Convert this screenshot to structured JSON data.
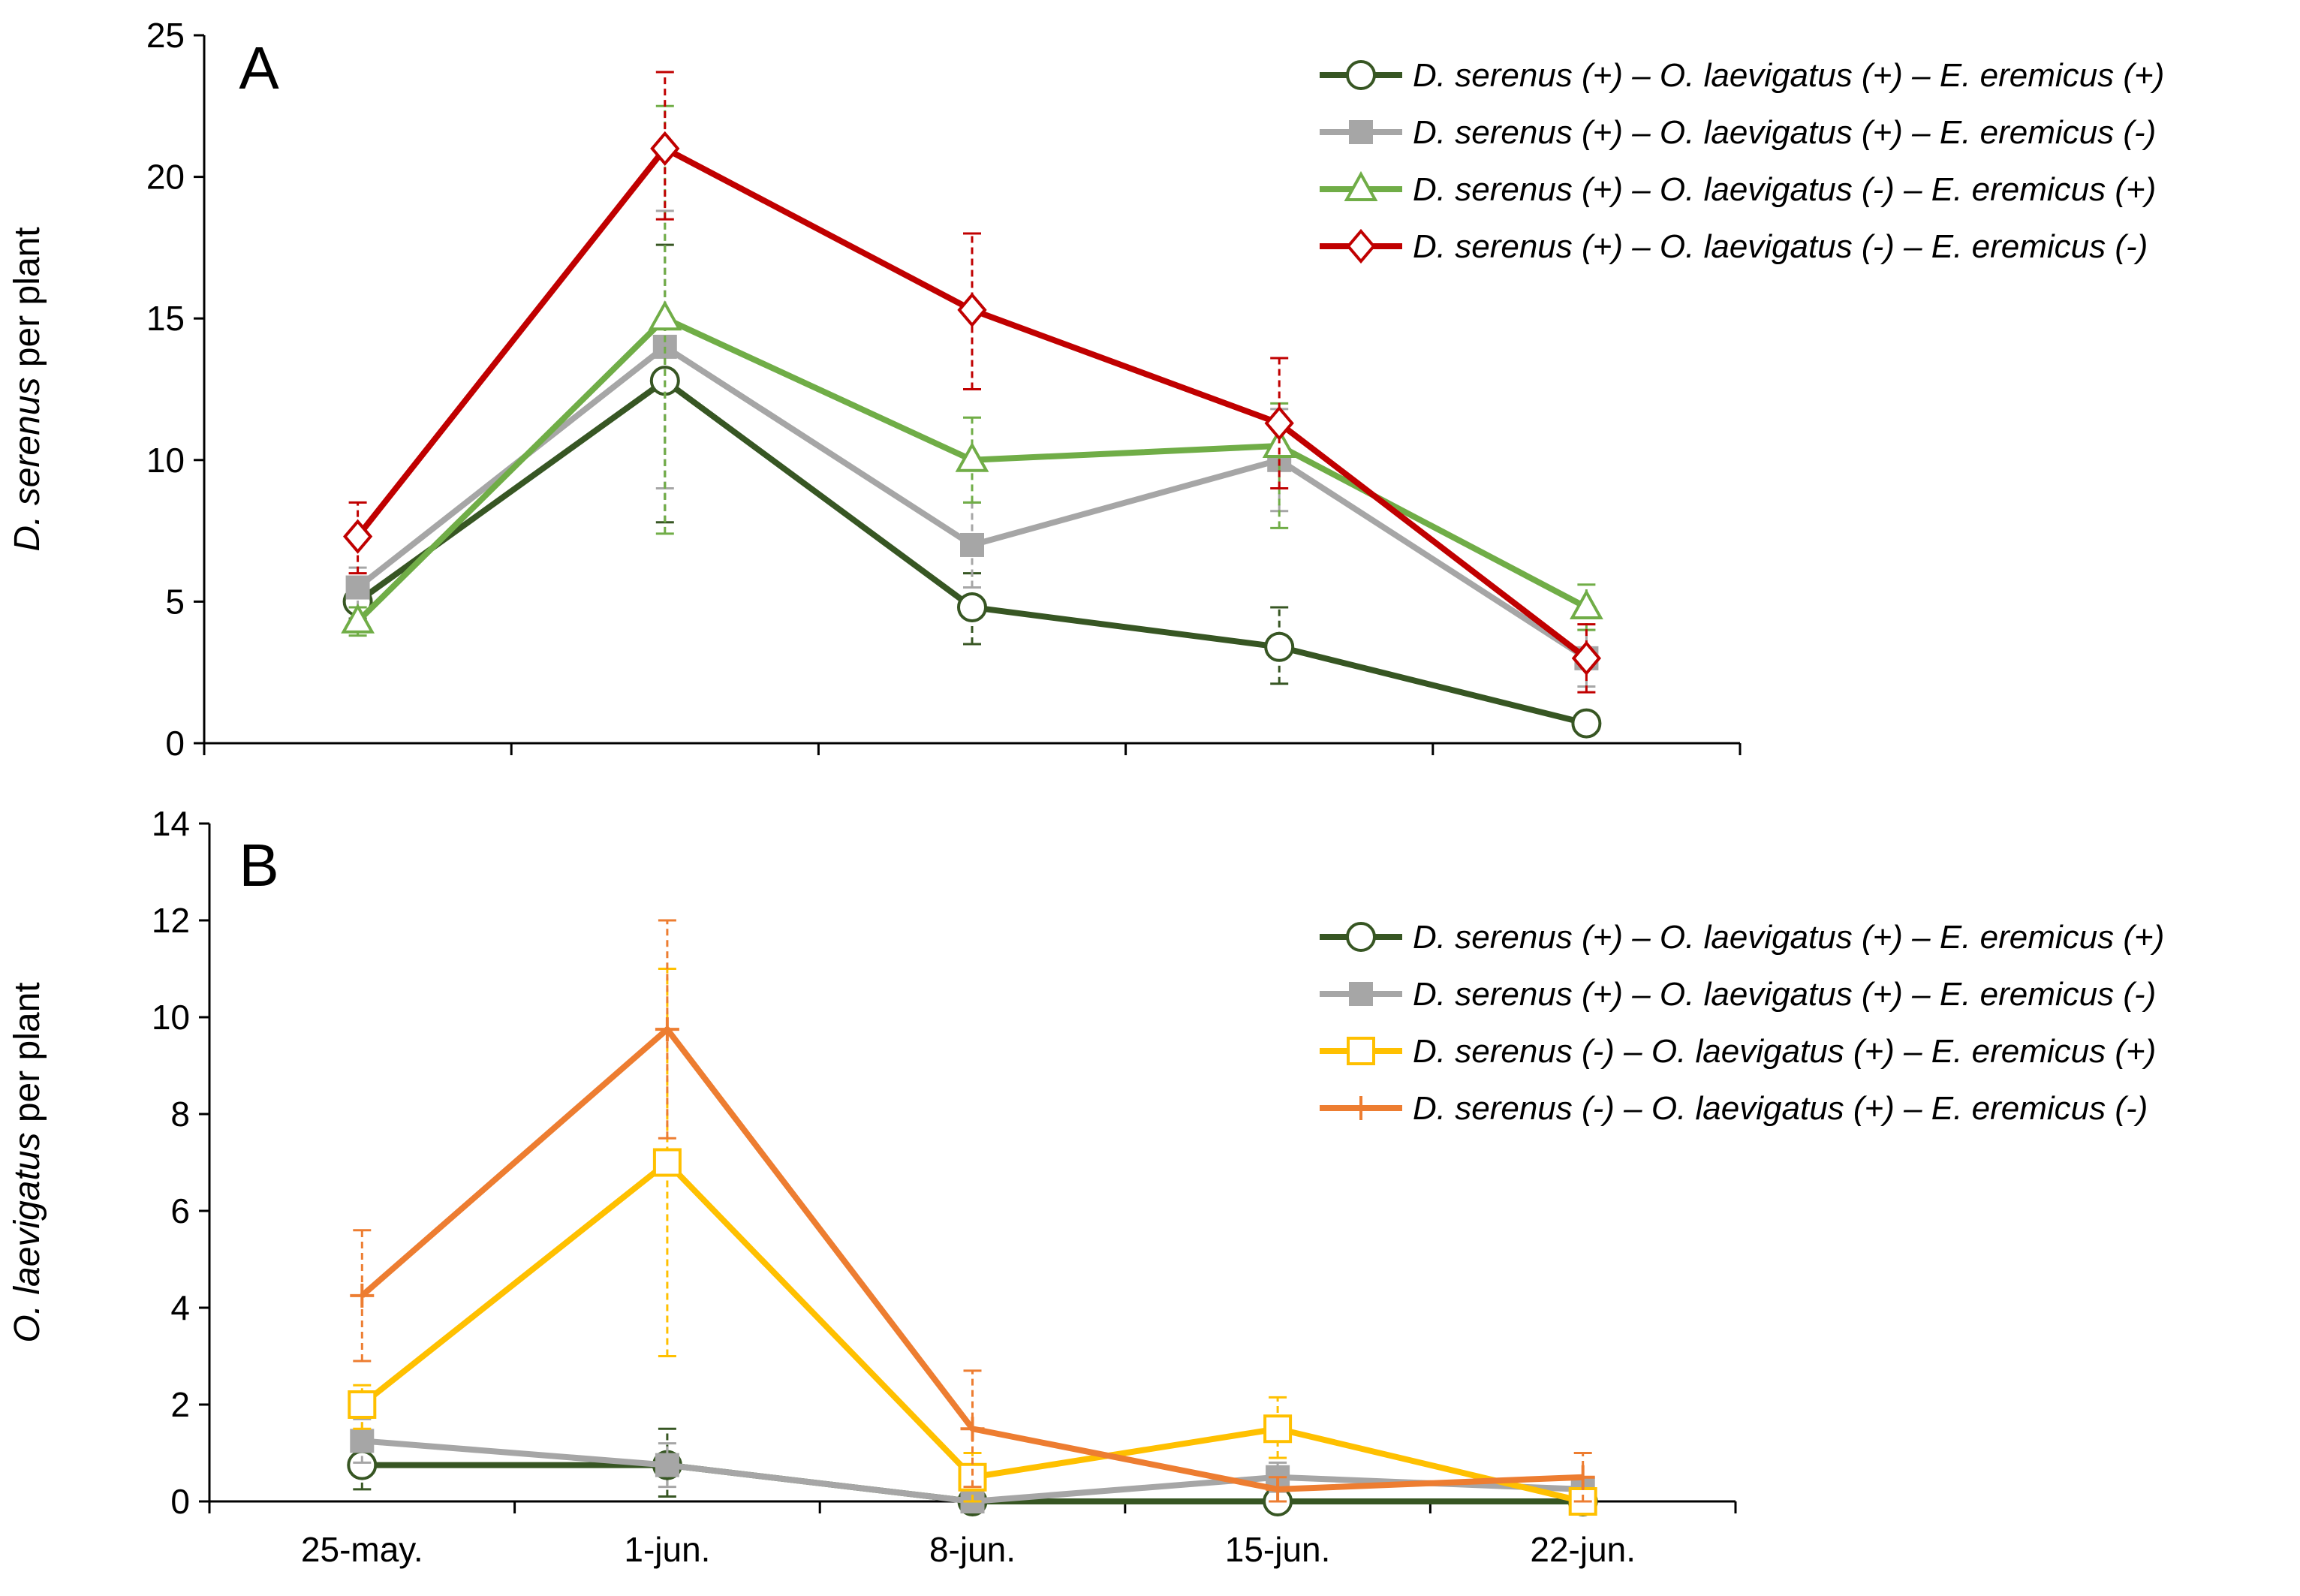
{
  "chart_data": [
    {
      "type": "line",
      "panel_label": "A",
      "x": [
        "25-may.",
        "1-jun.",
        "8-jun.",
        "15-jun.",
        "22-jun."
      ],
      "ylabel_italic": "D. serenus",
      "ylabel_rest": " per plant",
      "ylim": [
        0,
        25
      ],
      "yticks": [
        0,
        5,
        10,
        15,
        20,
        25
      ],
      "grid": false,
      "legend_position": "top-right",
      "series": [
        {
          "name": "D. serenus (+) –  O. laevigatus (+) – E. eremicus (+)",
          "color": "#375623",
          "marker": "circle-open",
          "values": [
            5.0,
            12.8,
            4.8,
            3.4,
            0.7
          ],
          "error_low": [
            4.4,
            7.8,
            3.5,
            2.1,
            0.7
          ],
          "error_high": [
            5.6,
            17.6,
            6.0,
            4.8,
            0.7
          ]
        },
        {
          "name": "D. serenus (+) –  O. laevigatus (+) – E. eremicus (-)",
          "color": "#a6a6a6",
          "marker": "square-filled",
          "values": [
            5.5,
            14.0,
            7.0,
            10.0,
            3.0
          ],
          "error_low": [
            4.8,
            9.0,
            5.5,
            8.2,
            2.0
          ],
          "error_high": [
            6.2,
            18.8,
            8.5,
            11.8,
            4.0
          ]
        },
        {
          "name": "D. serenus (+) –  O. laevigatus (-) – E. eremicus (+)",
          "color": "#70ad47",
          "marker": "triangle-open",
          "values": [
            4.3,
            15.0,
            10.0,
            10.5,
            4.8
          ],
          "error_low": [
            3.8,
            7.4,
            8.5,
            7.6,
            4.0
          ],
          "error_high": [
            4.8,
            22.5,
            11.5,
            12.0,
            5.6
          ]
        },
        {
          "name": "D. serenus (+) –  O. laevigatus (-) – E. eremicus (-)",
          "color": "#c00000",
          "marker": "diamond-open",
          "values": [
            7.3,
            21.0,
            15.3,
            11.3,
            3.0
          ],
          "error_low": [
            6.0,
            18.5,
            12.5,
            9.0,
            1.8
          ],
          "error_high": [
            8.5,
            23.7,
            18.0,
            13.6,
            4.2
          ]
        }
      ]
    },
    {
      "type": "line",
      "panel_label": "B",
      "x": [
        "25-may.",
        "1-jun.",
        "8-jun.",
        "15-jun.",
        "22-jun."
      ],
      "xtick_labels": [
        "25-may.",
        "1-jun.",
        "8-jun.",
        "15-jun.",
        "22-jun."
      ],
      "ylabel_italic": "O. laevigatus",
      "ylabel_rest": " per plant",
      "ylim": [
        0,
        14
      ],
      "yticks": [
        0,
        2,
        4,
        6,
        8,
        10,
        12,
        14
      ],
      "grid": false,
      "legend_position": "right",
      "series": [
        {
          "name": "D. serenus (+) –  O. laevigatus (+) – E. eremicus (+)",
          "color": "#375623",
          "marker": "circle-open",
          "values": [
            0.75,
            0.75,
            0.0,
            0.0,
            0.0
          ],
          "error_low": [
            0.25,
            0.1,
            0.0,
            0.0,
            0.0
          ],
          "error_high": [
            1.25,
            1.5,
            0.0,
            0.0,
            0.0
          ]
        },
        {
          "name": "D. serenus (+) –  O. laevigatus (+) – E. eremicus (-)",
          "color": "#a6a6a6",
          "marker": "square-filled",
          "values": [
            1.25,
            0.75,
            0.0,
            0.5,
            0.25
          ],
          "error_low": [
            0.8,
            0.3,
            0.0,
            0.2,
            0.1
          ],
          "error_high": [
            1.7,
            1.2,
            0.0,
            0.8,
            0.4
          ]
        },
        {
          "name": "D. serenus (-) –  O. laevigatus (+) – E. eremicus (+)",
          "color": "#ffc000",
          "marker": "square-open",
          "values": [
            2.0,
            7.0,
            0.5,
            1.5,
            0.0
          ],
          "error_low": [
            1.5,
            3.0,
            0.0,
            0.9,
            0.0
          ],
          "error_high": [
            2.4,
            11.0,
            1.0,
            2.15,
            0.0
          ]
        },
        {
          "name": "D. serenus (-) –  O. laevigatus (+) – E. eremicus (-)",
          "color": "#ed7d31",
          "marker": "plus",
          "values": [
            4.25,
            9.75,
            1.5,
            0.25,
            0.5
          ],
          "error_low": [
            2.9,
            7.5,
            0.3,
            0.0,
            0.0
          ],
          "error_high": [
            5.6,
            12.0,
            2.7,
            0.5,
            1.0
          ]
        }
      ]
    }
  ]
}
